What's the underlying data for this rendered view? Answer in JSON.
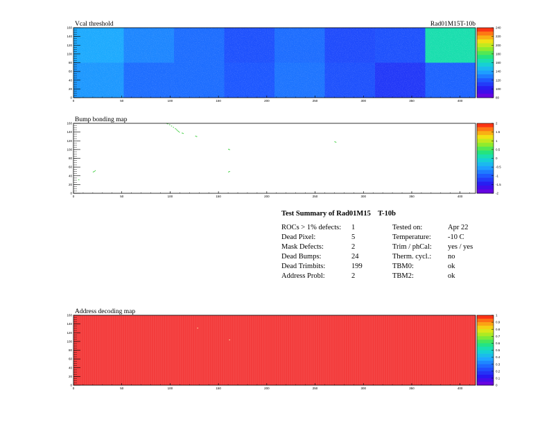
{
  "module_label": "Rad01M15T-10b",
  "panels": [
    {
      "title": "Vcal threshold",
      "colorbar_labels": [
        "240",
        "220",
        "200",
        "180",
        "160",
        "140",
        "120",
        "100",
        "80"
      ]
    },
    {
      "title": "Bump bonding map",
      "colorbar_labels": [
        "2",
        "1.5",
        "1",
        "0.5",
        "0",
        "-0.5",
        "-1",
        "-1.5",
        "-2"
      ]
    },
    {
      "title": "Address decoding map",
      "colorbar_labels": [
        "1",
        "0.9",
        "0.8",
        "0.7",
        "0.6",
        "0.5",
        "0.4",
        "0.3",
        "0.2",
        "0.1",
        "0"
      ]
    }
  ],
  "summary": {
    "heading": "Test Summary of Rad01M15    T-10b",
    "left": [
      {
        "label": "ROCs > 1% defects:",
        "value": "1"
      },
      {
        "label": "Dead Pixel:",
        "value": "5"
      },
      {
        "label": "Mask Defects:",
        "value": "2"
      },
      {
        "label": "Dead Bumps:",
        "value": "24"
      },
      {
        "label": "Dead Trimbits:",
        "value": "199"
      },
      {
        "label": "Address Probl:",
        "value": "2"
      }
    ],
    "right": [
      {
        "label": "Tested on:",
        "value": "Apr 22"
      },
      {
        "label": "Temperature:",
        "value": "-10 C"
      },
      {
        "label": "Trim / phCal:",
        "value": "yes / yes"
      },
      {
        "label": "Therm. cycl.:",
        "value": "no"
      },
      {
        "label": "TBM0:",
        "value": "ok"
      },
      {
        "label": "TBM2:",
        "value": "ok"
      }
    ]
  },
  "chart_data": [
    {
      "type": "heatmap",
      "title": "Vcal threshold",
      "xlim": [
        0,
        416
      ],
      "ylim": [
        0,
        160
      ],
      "x_ticks": [
        0,
        50,
        100,
        150,
        200,
        250,
        300,
        350,
        400
      ],
      "x_tick_labels": [
        "0",
        "50",
        "100",
        "150",
        "200",
        "250",
        "300",
        "350",
        "400"
      ],
      "y_ticks": [
        0,
        20,
        40,
        60,
        80,
        100,
        120,
        140,
        160
      ],
      "y_tick_labels": [
        "0",
        "20",
        "40",
        "60",
        "80",
        "100",
        "120",
        "140",
        "160"
      ],
      "z_range": [
        80,
        250
      ],
      "roc_grid": {
        "columns": 8,
        "rows": 2,
        "cols_per_roc": 52,
        "rows_per_roc": 80
      },
      "roc_mean_values": {
        "top_row": [
          145,
          135,
          128,
          120,
          128,
          118,
          120,
          170
        ],
        "bottom_row": [
          140,
          128,
          128,
          122,
          130,
          120,
          112,
          125
        ]
      }
    },
    {
      "type": "heatmap",
      "title": "Bump bonding map",
      "xlim": [
        0,
        416
      ],
      "ylim": [
        0,
        160
      ],
      "x_ticks": [
        0,
        50,
        100,
        150,
        200,
        250,
        300,
        350,
        400
      ],
      "x_tick_labels": [
        "0",
        "50",
        "100",
        "150",
        "200",
        "250",
        "300",
        "350",
        "400"
      ],
      "y_ticks": [
        0,
        20,
        40,
        60,
        80,
        100,
        120,
        140,
        160
      ],
      "y_tick_labels": [
        "0",
        "20",
        "40",
        "60",
        "80",
        "100",
        "120",
        "140",
        "160"
      ],
      "z_range": [
        -2,
        2
      ],
      "hits": [
        {
          "x": 96,
          "y": 159
        },
        {
          "x": 97,
          "y": 158
        },
        {
          "x": 99,
          "y": 156
        },
        {
          "x": 101,
          "y": 153
        },
        {
          "x": 103,
          "y": 150
        },
        {
          "x": 105,
          "y": 147
        },
        {
          "x": 106,
          "y": 145
        },
        {
          "x": 107,
          "y": 143
        },
        {
          "x": 108,
          "y": 141
        },
        {
          "x": 109,
          "y": 139
        },
        {
          "x": 112,
          "y": 137
        },
        {
          "x": 113,
          "y": 136
        },
        {
          "x": 126,
          "y": 130
        },
        {
          "x": 127,
          "y": 129
        },
        {
          "x": 160,
          "y": 100
        },
        {
          "x": 161,
          "y": 99
        },
        {
          "x": 161,
          "y": 49
        },
        {
          "x": 160,
          "y": 48
        },
        {
          "x": 270,
          "y": 117
        },
        {
          "x": 271,
          "y": 116
        },
        {
          "x": 22,
          "y": 51
        },
        {
          "x": 21,
          "y": 49
        },
        {
          "x": 20,
          "y": 48
        },
        {
          "x": 5,
          "y": 30
        }
      ]
    },
    {
      "type": "heatmap",
      "title": "Address decoding map",
      "xlim": [
        0,
        416
      ],
      "ylim": [
        0,
        160
      ],
      "x_ticks": [
        0,
        50,
        100,
        150,
        200,
        250,
        300,
        350,
        400
      ],
      "x_tick_labels": [
        "0",
        "50",
        "100",
        "150",
        "200",
        "250",
        "300",
        "350",
        "400"
      ],
      "y_ticks": [
        0,
        20,
        40,
        60,
        80,
        100,
        120,
        140,
        160
      ],
      "y_tick_labels": [
        "0",
        "20",
        "40",
        "60",
        "80",
        "100",
        "120",
        "140",
        "160"
      ],
      "z_range": [
        0,
        1
      ],
      "fill_value": 1,
      "defects": [
        {
          "x": 161,
          "y": 103,
          "value": 0.95
        },
        {
          "x": 128,
          "y": 130,
          "value": 0.95
        }
      ]
    }
  ]
}
